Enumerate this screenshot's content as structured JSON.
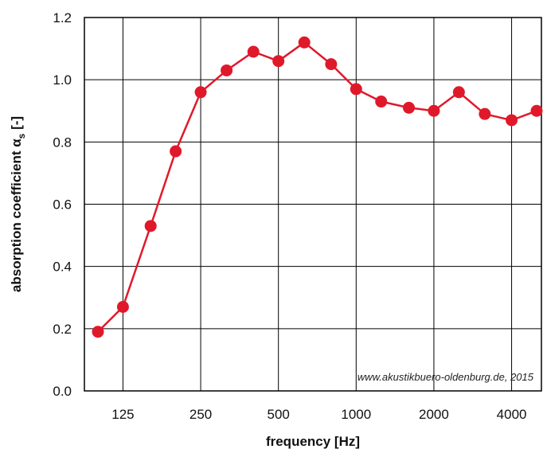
{
  "chart_data": {
    "type": "line",
    "title": "",
    "xlabel": "frequency [Hz]",
    "ylabel_main": "absorption coefficient α",
    "ylabel_sub": "s",
    "ylabel_suffix": " [-]",
    "ylim": [
      0.0,
      1.2
    ],
    "yticks": [
      "0.0",
      "0.2",
      "0.4",
      "0.6",
      "0.8",
      "1.0",
      "1.2"
    ],
    "x_tick_labels": [
      "125",
      "250",
      "500",
      "1000",
      "2000",
      "4000"
    ],
    "x_tick_values": [
      125,
      250,
      500,
      1000,
      2000,
      4000
    ],
    "grid": true,
    "credit": "www.akustikbuero-oldenburg.de, 2015",
    "series_color": "#e0192a",
    "series": [
      {
        "x": [
          100,
          125,
          160,
          200,
          250,
          315,
          400,
          500,
          630,
          800,
          1000,
          1250,
          1600,
          2000,
          2500,
          3150,
          4000,
          5000
        ],
        "values": [
          0.19,
          0.27,
          0.53,
          0.77,
          0.96,
          1.03,
          1.09,
          1.06,
          1.12,
          1.05,
          0.97,
          0.93,
          0.91,
          0.9,
          0.96,
          0.89,
          0.87,
          0.9
        ]
      }
    ]
  }
}
